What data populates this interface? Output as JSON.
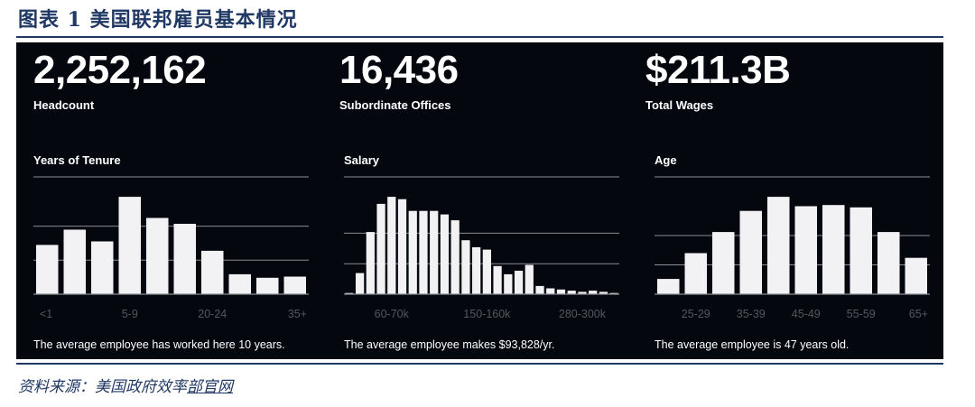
{
  "figure": {
    "title": "图表 1   美国联邦雇员基本情况",
    "source_prefix": "资料来源：美国政府效率",
    "source_link": "部官网"
  },
  "stats": [
    {
      "value": "2,252,162",
      "label": "Headcount"
    },
    {
      "value": "16,436",
      "label": "Subordinate Offices"
    },
    {
      "value": "$211.3B",
      "label": "Total Wages"
    }
  ],
  "colors": {
    "panel": "#05070f",
    "bar": "#f2f2f4",
    "grid": "#8a8c94",
    "tick": "#55575e",
    "accent": "#1f3864"
  },
  "chart_data": [
    {
      "type": "bar",
      "title": "Years of Tenure",
      "note": "The average employee has worked here 10 years.",
      "value_units": "relative height (no y-axis printed)",
      "ylim": [
        0,
        1
      ],
      "grid": [
        0.29,
        0.58,
        1.0
      ],
      "values": [
        0.42,
        0.55,
        0.45,
        0.83,
        0.65,
        0.6,
        0.37,
        0.17,
        0.14,
        0.15
      ],
      "tick_labels": [
        {
          "index": 0,
          "text": "<1"
        },
        {
          "index": 3,
          "text": "5-9"
        },
        {
          "index": 6,
          "text": "20-24"
        },
        {
          "index": 9,
          "text": "35+"
        }
      ]
    },
    {
      "type": "bar",
      "title": "Salary",
      "note": "The average employee makes $93,828/yr.",
      "value_units": "relative height (no y-axis printed)",
      "ylim": [
        0,
        1
      ],
      "grid": [
        0.26,
        0.52,
        1.0
      ],
      "values": [
        0.01,
        0.18,
        0.53,
        0.77,
        0.83,
        0.81,
        0.71,
        0.71,
        0.71,
        0.68,
        0.63,
        0.46,
        0.4,
        0.38,
        0.24,
        0.17,
        0.2,
        0.25,
        0.07,
        0.05,
        0.04,
        0.03,
        0.02,
        0.03,
        0.02,
        0.01
      ],
      "tick_labels": [
        {
          "index": 4,
          "text": "60-70k"
        },
        {
          "index": 13,
          "text": "150-160k"
        },
        {
          "index": 22,
          "text": "280-300k"
        }
      ]
    },
    {
      "type": "bar",
      "title": "Age",
      "note": "The average employee is 47 years old.",
      "value_units": "relative height (no y-axis printed)",
      "ylim": [
        0,
        1
      ],
      "grid": [
        0.25,
        0.5,
        1.0
      ],
      "values": [
        0.13,
        0.35,
        0.53,
        0.71,
        0.83,
        0.75,
        0.76,
        0.74,
        0.53,
        0.31
      ],
      "tick_labels": [
        {
          "index": 1,
          "text": "25-29"
        },
        {
          "index": 3,
          "text": "35-39"
        },
        {
          "index": 5,
          "text": "45-49"
        },
        {
          "index": 7,
          "text": "55-59"
        },
        {
          "index": 9,
          "text": "65+"
        }
      ]
    }
  ]
}
